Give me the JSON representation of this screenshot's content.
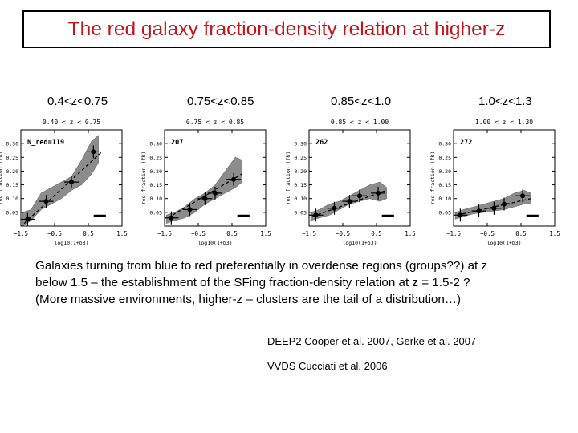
{
  "title": "The red galaxy fraction-density relation at higher-z",
  "panel_labels": [
    "0.4<z<0.75",
    "0.75<z<0.85",
    "0.85<z<1.0",
    "1.0<z<1.3"
  ],
  "paragraph": {
    "lines": [
      "Galaxies turning from blue to red preferentially in overdense regions (groups??) at z",
      "below 1.5 – the establishment of the SFing fraction-density relation at z = 1.5-2 ?",
      "(More massive environments, higher-z – clusters are the tail of a distribution…)"
    ]
  },
  "references": [
    "DEEP2 Cooper et al. 2007, Gerke et al. 2007",
    "VVDS Cucciati et al. 2006"
  ],
  "colors": {
    "title": "#c0151b",
    "band": "#8c8c8c"
  },
  "chart_data": [
    {
      "type": "line",
      "title": "0.40 < z < 0.75",
      "annotation": "N_red=119",
      "xlabel": "log10(1+δ3)",
      "ylabel": "red fraction (fR)",
      "xlim": [
        -1.5,
        1.5
      ],
      "ylim": [
        0,
        0.35
      ],
      "xticks": [
        -1.5,
        -0.5,
        0.5,
        1.5
      ],
      "xtick_labels": [
        "−1.5",
        "−0.5",
        "0.5",
        "1.5"
      ],
      "yticks": [
        0.05,
        0.1,
        0.15,
        0.2,
        0.25,
        0.3
      ],
      "ytick_labels": [
        "0.05",
        "0.10",
        "0.15",
        "0.20",
        "0.25",
        "0.30"
      ],
      "points": {
        "x": [
          -1.3,
          -0.75,
          0.0,
          0.65
        ],
        "y": [
          0.025,
          0.09,
          0.16,
          0.27
        ]
      },
      "fit": {
        "x": [
          -1.4,
          0.9
        ],
        "y": [
          0.01,
          0.27
        ]
      },
      "band": {
        "x": [
          -1.45,
          -1.2,
          -0.9,
          -0.6,
          -0.3,
          0.0,
          0.3,
          0.6,
          0.8
        ],
        "lo": [
          0.0,
          0.02,
          0.06,
          0.08,
          0.1,
          0.13,
          0.15,
          0.19,
          0.23
        ],
        "hi": [
          0.05,
          0.06,
          0.12,
          0.14,
          0.16,
          0.18,
          0.24,
          0.31,
          0.33
        ]
      }
    },
    {
      "type": "line",
      "title": "0.75 < z < 0.85",
      "annotation": "207",
      "xlabel": "log10(1+δ3)",
      "ylabel": "red fraction (fR)",
      "xlim": [
        -1.5,
        1.5
      ],
      "ylim": [
        0,
        0.35
      ],
      "xticks": [
        -1.5,
        -0.5,
        0.5,
        1.5
      ],
      "xtick_labels": [
        "−1.5",
        "−0.5",
        "0.5",
        "1.5"
      ],
      "yticks": [
        0.05,
        0.1,
        0.15,
        0.2,
        0.25,
        0.3
      ],
      "ytick_labels": [
        "0.05",
        "0.10",
        "0.15",
        "0.20",
        "0.25",
        "0.30"
      ],
      "points": {
        "x": [
          -1.3,
          -0.75,
          -0.3,
          0.0,
          0.55
        ],
        "y": [
          0.03,
          0.06,
          0.1,
          0.12,
          0.17
        ]
      },
      "fit": {
        "x": [
          -1.4,
          0.8
        ],
        "y": [
          0.03,
          0.19
        ]
      },
      "band": {
        "x": [
          -1.45,
          -1.2,
          -0.9,
          -0.6,
          -0.3,
          0.0,
          0.3,
          0.6,
          0.8
        ],
        "lo": [
          0.01,
          0.02,
          0.03,
          0.05,
          0.08,
          0.1,
          0.12,
          0.14,
          0.16
        ],
        "hi": [
          0.04,
          0.05,
          0.07,
          0.1,
          0.12,
          0.15,
          0.2,
          0.25,
          0.24
        ]
      }
    },
    {
      "type": "line",
      "title": "0.85 < z < 1.00",
      "annotation": "262",
      "xlabel": "log10(1+δ3)",
      "ylabel": "red fraction (fR)",
      "xlim": [
        -1.5,
        1.5
      ],
      "ylim": [
        0,
        0.35
      ],
      "xticks": [
        -1.5,
        -0.5,
        0.5,
        1.5
      ],
      "xtick_labels": [
        "−1.5",
        "−0.5",
        "0.5",
        "1.5"
      ],
      "yticks": [
        0.05,
        0.1,
        0.15,
        0.2,
        0.25,
        0.3
      ],
      "ytick_labels": [
        "0.05",
        "0.10",
        "0.15",
        "0.20",
        "0.25",
        "0.30"
      ],
      "points": {
        "x": [
          -1.3,
          -0.75,
          -0.3,
          0.0,
          0.55
        ],
        "y": [
          0.04,
          0.065,
          0.09,
          0.11,
          0.12
        ]
      },
      "fit": {
        "x": [
          -1.4,
          0.8
        ],
        "y": [
          0.035,
          0.13
        ]
      },
      "band": {
        "x": [
          -1.45,
          -1.2,
          -0.9,
          -0.6,
          -0.3,
          0.0,
          0.3,
          0.6,
          0.8
        ],
        "lo": [
          0.02,
          0.03,
          0.04,
          0.06,
          0.08,
          0.09,
          0.1,
          0.09,
          0.1
        ],
        "hi": [
          0.05,
          0.06,
          0.08,
          0.09,
          0.11,
          0.13,
          0.15,
          0.16,
          0.14
        ]
      }
    },
    {
      "type": "line",
      "title": "1.00 < z < 1.30",
      "annotation": "272",
      "xlabel": "log10(1+δ3)",
      "ylabel": "red fraction (fR)",
      "xlim": [
        -1.5,
        1.5
      ],
      "ylim": [
        0,
        0.35
      ],
      "xticks": [
        -1.5,
        -0.5,
        0.5,
        1.5
      ],
      "xtick_labels": [
        "−1.5",
        "−0.5",
        "0.5",
        "1.5"
      ],
      "yticks": [
        0.05,
        0.1,
        0.15,
        0.2,
        0.25,
        0.3
      ],
      "ytick_labels": [
        "0.05",
        "0.10",
        "0.15",
        "0.20",
        "0.25",
        "0.30"
      ],
      "points": {
        "x": [
          -1.3,
          -0.75,
          -0.3,
          0.0,
          0.55
        ],
        "y": [
          0.04,
          0.055,
          0.065,
          0.08,
          0.11
        ]
      },
      "fit": {
        "x": [
          -1.4,
          0.8
        ],
        "y": [
          0.04,
          0.1
        ]
      },
      "band": {
        "x": [
          -1.45,
          -1.2,
          -0.9,
          -0.6,
          -0.3,
          0.0,
          0.3,
          0.6,
          0.8
        ],
        "lo": [
          0.025,
          0.035,
          0.045,
          0.05,
          0.055,
          0.06,
          0.07,
          0.08,
          0.08
        ],
        "hi": [
          0.05,
          0.06,
          0.07,
          0.08,
          0.09,
          0.1,
          0.12,
          0.13,
          0.12
        ]
      }
    }
  ]
}
